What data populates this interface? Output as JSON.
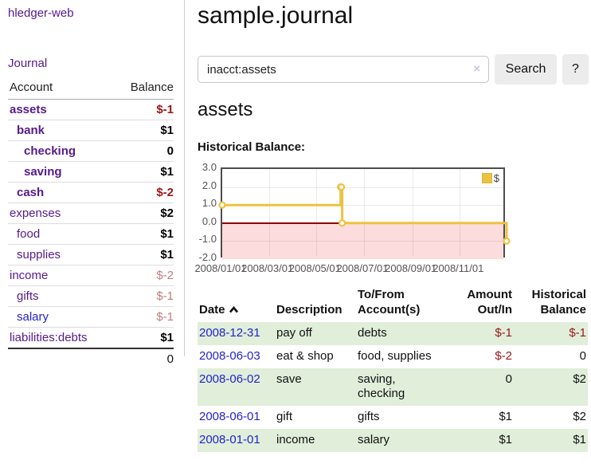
{
  "app": {
    "brand": "hledger-web",
    "nav_journal": "Journal"
  },
  "header": {
    "title": "sample.journal"
  },
  "search": {
    "value": "inacct:assets",
    "clear_icon": "×",
    "button_label": "Search",
    "help_label": "?"
  },
  "account_page": {
    "heading": "assets",
    "chart_title": "Historical Balance:"
  },
  "sidebar": {
    "header": {
      "account": "Account",
      "balance": "Balance"
    },
    "accounts": [
      {
        "name": "assets",
        "balance": "$-1",
        "depth": 1,
        "bold": true,
        "neg": "strong"
      },
      {
        "name": "bank",
        "balance": "$1",
        "depth": 2,
        "bold": true
      },
      {
        "name": "checking",
        "balance": "0",
        "depth": 3,
        "bold": true
      },
      {
        "name": "saving",
        "balance": "$1",
        "depth": 3,
        "bold": true
      },
      {
        "name": "cash",
        "balance": "$-2",
        "depth": 2,
        "bold": true,
        "neg": "strong"
      },
      {
        "name": "expenses",
        "balance": "$2",
        "depth": 1
      },
      {
        "name": "food",
        "balance": "$1",
        "depth": 2
      },
      {
        "name": "supplies",
        "balance": "$1",
        "depth": 2
      },
      {
        "name": "income",
        "balance": "$-2",
        "depth": 1,
        "neg": "soft"
      },
      {
        "name": "gifts",
        "balance": "$-1",
        "depth": 2,
        "neg": "soft"
      },
      {
        "name": "salary",
        "balance": "$-1",
        "depth": 2,
        "neg": "soft",
        "link": "blue"
      },
      {
        "name": "liabilities:debts",
        "balance": "$1",
        "depth": 1
      }
    ],
    "total": "0"
  },
  "chart_data": {
    "type": "line",
    "title": "Historical Balance:",
    "steps": true,
    "xrange": [
      "2008-01-01",
      "2008-12-31"
    ],
    "ylim": [
      -2,
      3
    ],
    "yticks": [
      "3.0",
      "2.0",
      "1.0",
      "0.0",
      "-1.0",
      "-2.0"
    ],
    "xticks": [
      "2008/01/01",
      "2008/03/01",
      "2008/05/01",
      "2008/07/01",
      "2008/09/01",
      "2008/11/01"
    ],
    "series": [
      {
        "name": "$",
        "color": "#edc240",
        "points": [
          [
            "2008-01-01",
            1
          ],
          [
            "2008-06-01",
            2
          ],
          [
            "2008-06-02",
            2
          ],
          [
            "2008-06-03",
            0
          ],
          [
            "2008-12-31",
            -1
          ]
        ]
      }
    ],
    "legend": "$",
    "legend_position": "top-right",
    "grid": true,
    "negative_fill": "#fcdcdc",
    "zero_line_color": "#8b0000"
  },
  "register": {
    "columns": {
      "date": "Date",
      "description": "Description",
      "accounts": "To/From\nAccount(s)",
      "amount": "Amount\nOut/In",
      "balance": "Historical\nBalance"
    },
    "sort": {
      "column": "date",
      "direction": "ascending"
    },
    "rows": [
      {
        "date": "2008-12-31",
        "description": "pay off",
        "accounts": "debts",
        "amount": "$-1",
        "amount_negative": true,
        "balance": "$-1",
        "balance_negative": true,
        "shaded": true
      },
      {
        "date": "2008-06-03",
        "description": "eat & shop",
        "accounts": "food, supplies",
        "amount": "$-2",
        "amount_negative": true,
        "balance": "0",
        "balance_negative": false,
        "shaded": false
      },
      {
        "date": "2008-06-02",
        "description": "save",
        "accounts": "saving,\nchecking",
        "amount": "0",
        "amount_negative": false,
        "balance": "$2",
        "balance_negative": false,
        "shaded": true
      },
      {
        "date": "2008-06-01",
        "description": "gift",
        "accounts": "gifts",
        "amount": "$1",
        "amount_negative": false,
        "balance": "$2",
        "balance_negative": false,
        "shaded": false
      },
      {
        "date": "2008-01-01",
        "description": "income",
        "accounts": "salary",
        "amount": "$1",
        "amount_negative": false,
        "balance": "$1",
        "balance_negative": false,
        "shaded": true
      }
    ]
  },
  "colors": {
    "accent_purple": "#551a8b",
    "link_blue": "#2323cc",
    "negative_strong": "#9e1616",
    "negative_soft": "#bd7e7e",
    "row_green": "#e0eeda",
    "button_gray": "#ececec",
    "chart_line": "#edc240",
    "chart_negative_fill": "#fcdcdc",
    "chart_zero_line": "#8b0000"
  }
}
